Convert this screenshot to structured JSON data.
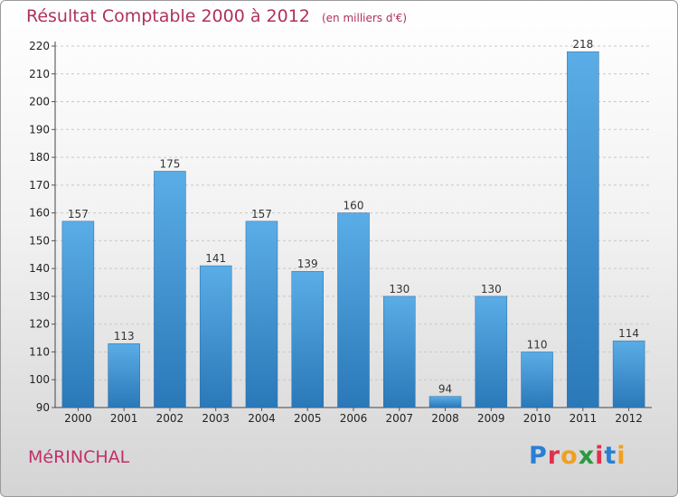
{
  "header": {
    "title": "Résultat Comptable 2000 à 2012",
    "subtitle": "(en milliers d'€)"
  },
  "footer": {
    "town": "MéRINCHAL",
    "logo_letters": [
      "P",
      "r",
      "o",
      "x",
      "i",
      "t",
      "i"
    ],
    "logo_colors": [
      "#2a7fd4",
      "#e03050",
      "#f0a020",
      "#2a9a40",
      "#e03050",
      "#2a7fd4",
      "#f0a020"
    ]
  },
  "colors": {
    "bar_top": "#5aade6",
    "bar_bottom": "#2a78b8",
    "title": "#b03060"
  },
  "chart_data": {
    "type": "bar",
    "title": "Résultat Comptable 2000 à 2012",
    "subtitle": "(en milliers d'€)",
    "xlabel": "",
    "ylabel": "",
    "categories": [
      "2000",
      "2001",
      "2002",
      "2003",
      "2004",
      "2005",
      "2006",
      "2007",
      "2008",
      "2009",
      "2010",
      "2011",
      "2012"
    ],
    "values": [
      157,
      113,
      175,
      141,
      157,
      139,
      160,
      130,
      94,
      130,
      110,
      218,
      114
    ],
    "ylim": [
      90,
      220
    ],
    "yticks": [
      90,
      100,
      110,
      120,
      130,
      140,
      150,
      160,
      170,
      180,
      190,
      200,
      210,
      220
    ],
    "grid": true
  }
}
